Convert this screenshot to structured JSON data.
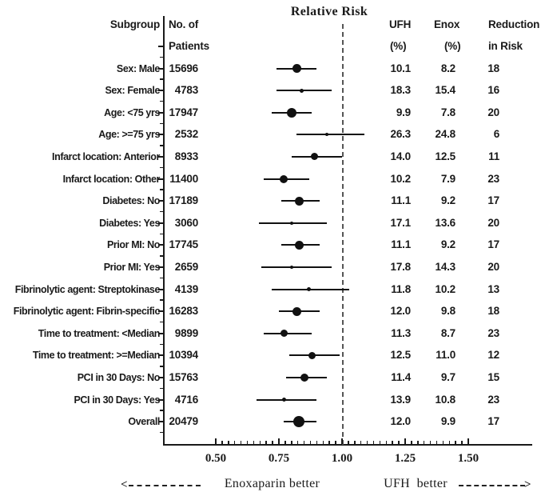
{
  "title": "Relative Risk",
  "colors": {
    "ink": "#1a1a1a",
    "marker": "#111111",
    "reference_line": "#555555",
    "background": "#ffffff"
  },
  "columns": {
    "subgroup": "Subgroup",
    "patients_line1": "No. of",
    "patients_line2": "Patients",
    "ufh_line1": "UFH",
    "ufh_line2": "(%)",
    "enox_line1": "Enox",
    "enox_line2": "(%)",
    "reduction_line1": "Reduction",
    "reduction_line2": "in Risk"
  },
  "footer": {
    "left_label": "Enoxaparin better",
    "right_label": "UFH  better"
  },
  "chart_data": {
    "type": "scatter",
    "subtype": "forest-plot",
    "title": "Relative Risk",
    "xlabel": "Relative Risk",
    "x_axis": {
      "scale": "linear",
      "range": [
        0.45,
        1.68
      ],
      "major_ticks": [
        0.5,
        0.75,
        1.0,
        1.25,
        1.5
      ],
      "major_tick_labels": [
        "0.50",
        "0.75",
        "1.00",
        "1.25",
        "1.50"
      ],
      "minor_tick_step": 0.025,
      "reference_line": 1.0
    },
    "legend": {
      "left_direction": "Enoxaparin better",
      "right_direction": "UFH  better"
    },
    "rows": [
      {
        "subgroup": "Sex: Male",
        "patients": "15696",
        "ufh_pct": "10.1",
        "enox_pct": "8.2",
        "reduction_pct": "18",
        "rr": 0.82,
        "ci_low": 0.74,
        "ci_high": 0.9,
        "marker_size": 11
      },
      {
        "subgroup": "Sex: Female",
        "patients": "4783",
        "ufh_pct": "18.3",
        "enox_pct": "15.4",
        "reduction_pct": "16",
        "rr": 0.84,
        "ci_low": 0.74,
        "ci_high": 0.96,
        "marker_size": 5
      },
      {
        "subgroup": "Age: <75 yrs",
        "patients": "17947",
        "ufh_pct": "9.9",
        "enox_pct": "7.8",
        "reduction_pct": "20",
        "rr": 0.8,
        "ci_low": 0.72,
        "ci_high": 0.88,
        "marker_size": 12
      },
      {
        "subgroup": "Age: >=75 yrs",
        "patients": "2532",
        "ufh_pct": "26.3",
        "enox_pct": "24.8",
        "reduction_pct": "6",
        "rr": 0.94,
        "ci_low": 0.82,
        "ci_high": 1.09,
        "marker_size": 4
      },
      {
        "subgroup": "Infarct location: Anterior",
        "patients": "8933",
        "ufh_pct": "14.0",
        "enox_pct": "12.5",
        "reduction_pct": "11",
        "rr": 0.89,
        "ci_low": 0.8,
        "ci_high": 1.0,
        "marker_size": 9
      },
      {
        "subgroup": "Infarct location: Other",
        "patients": "11400",
        "ufh_pct": "10.2",
        "enox_pct": "7.9",
        "reduction_pct": "23",
        "rr": 0.77,
        "ci_low": 0.69,
        "ci_high": 0.87,
        "marker_size": 10
      },
      {
        "subgroup": "Diabetes: No",
        "patients": "17189",
        "ufh_pct": "11.1",
        "enox_pct": "9.2",
        "reduction_pct": "17",
        "rr": 0.83,
        "ci_low": 0.76,
        "ci_high": 0.91,
        "marker_size": 11
      },
      {
        "subgroup": "Diabetes: Yes",
        "patients": "3060",
        "ufh_pct": "17.1",
        "enox_pct": "13.6",
        "reduction_pct": "20",
        "rr": 0.8,
        "ci_low": 0.67,
        "ci_high": 0.94,
        "marker_size": 4
      },
      {
        "subgroup": "Prior MI: No",
        "patients": "17745",
        "ufh_pct": "11.1",
        "enox_pct": "9.2",
        "reduction_pct": "17",
        "rr": 0.83,
        "ci_low": 0.76,
        "ci_high": 0.91,
        "marker_size": 11
      },
      {
        "subgroup": "Prior MI: Yes",
        "patients": "2659",
        "ufh_pct": "17.8",
        "enox_pct": "14.3",
        "reduction_pct": "20",
        "rr": 0.8,
        "ci_low": 0.68,
        "ci_high": 0.96,
        "marker_size": 4
      },
      {
        "subgroup": "Fibrinolytic agent: Streptokinase",
        "patients": "4139",
        "ufh_pct": "11.8",
        "enox_pct": "10.2",
        "reduction_pct": "13",
        "rr": 0.87,
        "ci_low": 0.72,
        "ci_high": 1.03,
        "marker_size": 5
      },
      {
        "subgroup": "Fibrinolytic agent: Fibrin-specific",
        "patients": "16283",
        "ufh_pct": "12.0",
        "enox_pct": "9.8",
        "reduction_pct": "18",
        "rr": 0.82,
        "ci_low": 0.75,
        "ci_high": 0.91,
        "marker_size": 11
      },
      {
        "subgroup": "Time to treatment: <Median",
        "patients": "9899",
        "ufh_pct": "11.3",
        "enox_pct": "8.7",
        "reduction_pct": "23",
        "rr": 0.77,
        "ci_low": 0.69,
        "ci_high": 0.88,
        "marker_size": 9
      },
      {
        "subgroup": "Time to treatment: >=Median",
        "patients": "10394",
        "ufh_pct": "12.5",
        "enox_pct": "11.0",
        "reduction_pct": "12",
        "rr": 0.88,
        "ci_low": 0.79,
        "ci_high": 0.99,
        "marker_size": 9
      },
      {
        "subgroup": "PCI in 30 Days: No",
        "patients": "15763",
        "ufh_pct": "11.4",
        "enox_pct": "9.7",
        "reduction_pct": "15",
        "rr": 0.85,
        "ci_low": 0.78,
        "ci_high": 0.94,
        "marker_size": 10
      },
      {
        "subgroup": "PCI in 30 Days: Yes",
        "patients": "4716",
        "ufh_pct": "13.9",
        "enox_pct": "10.8",
        "reduction_pct": "23",
        "rr": 0.77,
        "ci_low": 0.66,
        "ci_high": 0.9,
        "marker_size": 5
      },
      {
        "subgroup": "Overall",
        "patients": "20479",
        "ufh_pct": "12.0",
        "enox_pct": "9.9",
        "reduction_pct": "17",
        "rr": 0.83,
        "ci_low": 0.77,
        "ci_high": 0.9,
        "marker_size": 14
      }
    ]
  }
}
